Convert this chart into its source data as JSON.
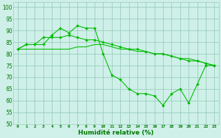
{
  "xlabel": "Humidité relative (%)",
  "bg_color": "#cef0e8",
  "grid_color": "#99ccbb",
  "line_color": "#00bb00",
  "xlim": [
    -0.5,
    23.5
  ],
  "ylim": [
    50,
    102
  ],
  "xticks": [
    0,
    1,
    2,
    3,
    4,
    5,
    6,
    7,
    8,
    9,
    10,
    11,
    12,
    13,
    14,
    15,
    16,
    17,
    18,
    19,
    20,
    21,
    22,
    23
  ],
  "yticks": [
    50,
    55,
    60,
    65,
    70,
    75,
    80,
    85,
    90,
    95,
    100
  ],
  "line1_x": [
    0,
    1,
    2,
    3,
    4,
    5,
    6,
    7,
    8,
    9,
    10,
    11,
    12,
    13,
    14,
    15,
    16,
    17,
    18,
    19,
    20,
    21,
    22,
    23
  ],
  "line1_y": [
    82,
    84,
    84,
    84,
    88,
    91,
    89,
    92,
    91,
    91,
    80,
    71,
    69,
    65,
    63,
    63,
    62,
    58,
    63,
    65,
    59,
    67,
    75,
    75
  ],
  "line2_x": [
    0,
    1,
    2,
    3,
    4,
    5,
    6,
    7,
    8,
    9,
    10,
    11,
    12,
    13,
    14,
    15,
    16,
    17,
    18,
    19,
    20,
    21,
    22,
    23
  ],
  "line2_y": [
    82,
    84,
    84,
    87,
    87,
    87,
    88,
    87,
    86,
    86,
    85,
    84,
    83,
    82,
    82,
    81,
    80,
    80,
    79,
    78,
    77,
    77,
    76,
    75
  ],
  "line3_x": [
    0,
    1,
    2,
    3,
    4,
    5,
    6,
    7,
    8,
    9,
    10,
    11,
    12,
    13,
    14,
    15,
    16,
    17,
    18,
    19,
    20,
    21,
    22,
    23
  ],
  "line3_y": [
    82,
    82,
    82,
    82,
    82,
    82,
    82,
    83,
    83,
    84,
    84,
    83,
    82,
    82,
    81,
    81,
    80,
    80,
    79,
    78,
    78,
    77,
    76,
    75
  ]
}
